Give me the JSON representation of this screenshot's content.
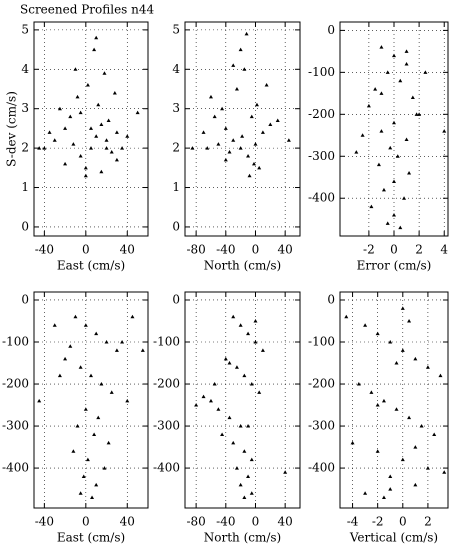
{
  "chart_data": [
    {
      "type": "scatter",
      "title": "Screened Profiles n44",
      "x_label": "East (cm/s)",
      "y_label": "S-dev (cm/s)",
      "xlim": [
        -50,
        60
      ],
      "ylim": [
        -0.23,
        5.2
      ],
      "xticks": [
        -40,
        0,
        40
      ],
      "yticks": [
        0,
        1,
        2,
        3,
        4,
        5
      ],
      "grid": true,
      "color": "#000000",
      "x": [
        -40,
        -30,
        -20,
        -12,
        -5,
        0,
        5,
        10,
        15,
        20,
        25,
        30,
        35,
        -25,
        -15,
        -8,
        2,
        12,
        22,
        -35,
        -10,
        8,
        18,
        28,
        40,
        50,
        -45,
        -20,
        0,
        15,
        30,
        10,
        -5,
        20,
        5
      ],
      "y": [
        2.0,
        2.2,
        2.5,
        2.1,
        1.8,
        1.5,
        2.0,
        2.3,
        2.6,
        2.2,
        1.9,
        2.4,
        2.0,
        3.0,
        2.8,
        3.3,
        3.6,
        3.1,
        2.7,
        2.4,
        4.0,
        4.5,
        3.9,
        3.4,
        2.3,
        2.9,
        2.0,
        1.6,
        1.3,
        1.4,
        1.7,
        4.8,
        2.9,
        2.0,
        2.5
      ]
    },
    {
      "type": "scatter",
      "x_label": "North (cm/s)",
      "xlim": [
        -95,
        60
      ],
      "ylim": [
        -0.23,
        5.2
      ],
      "xticks": [
        -80,
        -40,
        0,
        40
      ],
      "yticks": [
        0,
        1,
        2,
        3,
        4,
        5
      ],
      "grid": true,
      "color": "#000000",
      "x": [
        -85,
        -70,
        -60,
        -50,
        -40,
        -30,
        -20,
        -10,
        0,
        10,
        20,
        -45,
        -25,
        -15,
        -5,
        5,
        -35,
        -55,
        -20,
        -8,
        2,
        15,
        30,
        45,
        -65,
        -30,
        -12,
        -2,
        -18,
        -40
      ],
      "y": [
        2.0,
        2.4,
        3.3,
        2.1,
        2.5,
        2.2,
        2.0,
        1.8,
        2.1,
        2.4,
        2.6,
        3.0,
        3.5,
        4.0,
        2.8,
        1.5,
        1.9,
        2.8,
        4.5,
        1.3,
        3.1,
        3.6,
        2.7,
        2.2,
        2.0,
        4.1,
        4.9,
        1.6,
        2.3,
        1.7
      ]
    },
    {
      "type": "scatter",
      "x_label": "Error (cm/s)",
      "xlim": [
        -4.3,
        4.3
      ],
      "ylim": [
        -490,
        20
      ],
      "xticks": [
        -2,
        0,
        2,
        4
      ],
      "yticks": [
        0,
        -100,
        -200,
        -300,
        -400
      ],
      "grid": true,
      "color": "#000000",
      "x": [
        -1,
        0,
        1,
        -0.5,
        0.5,
        -1.5,
        1.5,
        -2,
        2,
        0,
        -1,
        1,
        -0.3,
        0.3,
        -2.5,
        2.5,
        -1.2,
        1.2,
        0,
        -0.8,
        0.8,
        -3,
        4,
        -1.8,
        1.8,
        0,
        -0.5,
        0.5,
        -1,
        1
      ],
      "y": [
        -40,
        -60,
        -80,
        -100,
        -120,
        -140,
        -160,
        -180,
        -200,
        -220,
        -240,
        -260,
        -280,
        -300,
        -250,
        -100,
        -320,
        -340,
        -360,
        -380,
        -400,
        -290,
        -240,
        -420,
        -200,
        -440,
        -460,
        -470,
        -150,
        -50
      ]
    },
    {
      "type": "scatter",
      "x_label": "East (cm/s)",
      "xlim": [
        -50,
        60
      ],
      "ylim": [
        -495,
        19
      ],
      "xticks": [
        -40,
        0,
        40
      ],
      "yticks": [
        0,
        -100,
        -200,
        -300,
        -400
      ],
      "grid": true,
      "color": "#000000",
      "x": [
        -10,
        0,
        10,
        20,
        30,
        -20,
        -5,
        5,
        15,
        25,
        40,
        -30,
        -15,
        0,
        12,
        35,
        55,
        -45,
        -25,
        -8,
        8,
        22,
        45,
        -12,
        2,
        18,
        -2,
        10,
        -5,
        6
      ],
      "y": [
        -40,
        -60,
        -80,
        -100,
        -120,
        -140,
        -160,
        -180,
        -200,
        -220,
        -240,
        -60,
        -110,
        -260,
        -280,
        -100,
        -120,
        -240,
        -180,
        -300,
        -320,
        -340,
        -40,
        -360,
        -380,
        -400,
        -420,
        -440,
        -460,
        -470
      ]
    },
    {
      "type": "scatter",
      "x_label": "North (cm/s)",
      "xlim": [
        -95,
        60
      ],
      "ylim": [
        -495,
        19
      ],
      "xticks": [
        -80,
        -40,
        0,
        40
      ],
      "yticks": [
        0,
        -100,
        -200,
        -300,
        -400
      ],
      "grid": true,
      "color": "#000000",
      "x": [
        -30,
        -20,
        -10,
        0,
        10,
        -40,
        -25,
        -15,
        -5,
        5,
        -60,
        -50,
        -35,
        -20,
        -80,
        -70,
        -45,
        -30,
        -15,
        -5,
        -25,
        -10,
        -20,
        -5,
        -15,
        40,
        -55,
        0,
        -35,
        -10
      ],
      "y": [
        -40,
        -60,
        -80,
        -100,
        -120,
        -140,
        -160,
        -180,
        -200,
        -220,
        -240,
        -260,
        -280,
        -300,
        -250,
        -230,
        -320,
        -340,
        -360,
        -380,
        -400,
        -420,
        -440,
        -460,
        -470,
        -410,
        -200,
        -50,
        -150,
        -300
      ]
    },
    {
      "type": "scatter",
      "x_label": "Vertical (cm/s)",
      "xlim": [
        -5,
        3.6
      ],
      "ylim": [
        -495,
        19
      ],
      "xticks": [
        -4,
        -2,
        0,
        2
      ],
      "yticks": [
        0,
        -100,
        -200,
        -300,
        -400
      ],
      "grid": true,
      "color": "#000000",
      "x": [
        -4.5,
        -3,
        -2,
        -1,
        0,
        1,
        2,
        3,
        -3.5,
        -2.5,
        -1.5,
        -0.5,
        0.5,
        1.5,
        2.5,
        -4,
        -2,
        0,
        2,
        -1,
        1,
        -3,
        3.3,
        -1.5,
        0.5,
        -0.5,
        -2,
        1,
        0,
        -1
      ],
      "y": [
        -40,
        -60,
        -80,
        -100,
        -120,
        -140,
        -160,
        -180,
        -200,
        -220,
        -240,
        -260,
        -280,
        -300,
        -320,
        -340,
        -360,
        -380,
        -400,
        -420,
        -440,
        -460,
        -410,
        -470,
        -50,
        -150,
        -250,
        -350,
        -20,
        -450
      ]
    }
  ]
}
